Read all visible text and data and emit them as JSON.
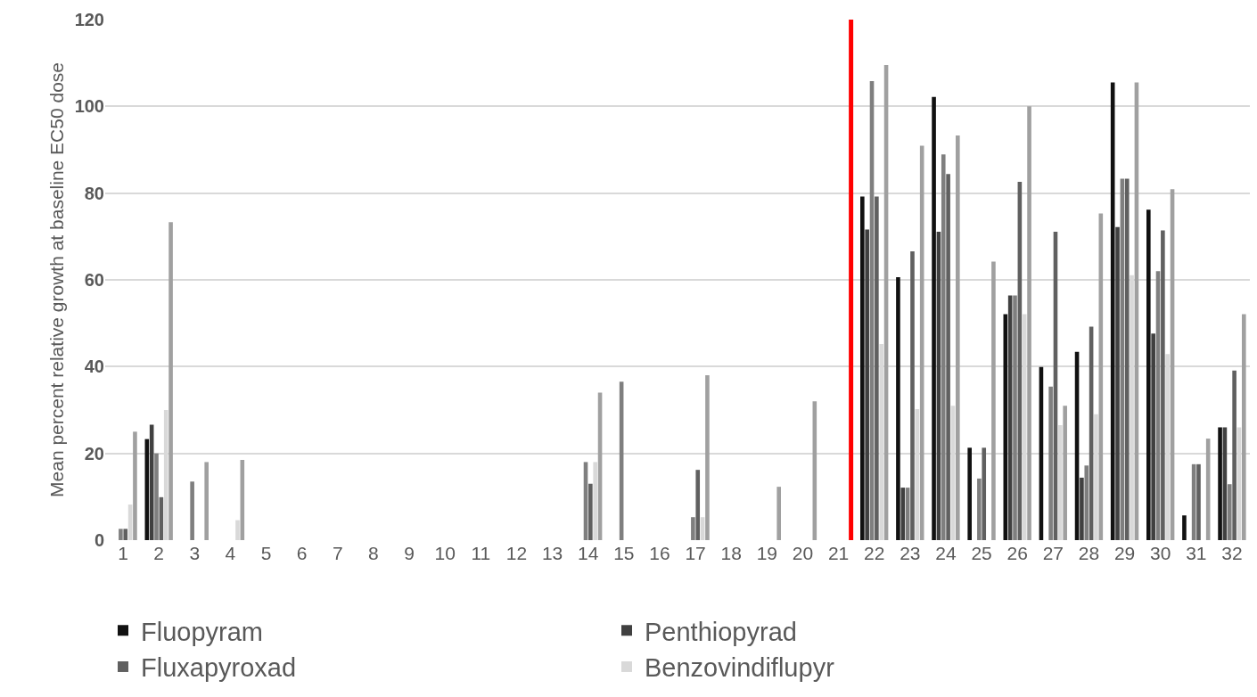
{
  "chart_data": {
    "type": "bar",
    "ylabel": "Mean percent relative growth at baseline EC50 dose",
    "x": [
      1,
      2,
      3,
      4,
      5,
      6,
      7,
      8,
      9,
      10,
      11,
      12,
      13,
      14,
      15,
      16,
      17,
      18,
      19,
      20,
      21,
      22,
      23,
      24,
      25,
      26,
      27,
      28,
      29,
      30,
      31,
      32
    ],
    "xlim": [
      0.5,
      32.5
    ],
    "xticks": [
      1,
      2,
      3,
      4,
      5,
      6,
      7,
      8,
      9,
      10,
      11,
      12,
      13,
      14,
      15,
      16,
      17,
      18,
      19,
      20,
      21,
      22,
      23,
      24,
      25,
      26,
      27,
      28,
      29,
      30,
      31,
      32
    ],
    "ylim": [
      0,
      120
    ],
    "yticks": [
      0,
      20,
      40,
      60,
      80,
      100,
      120
    ],
    "grid": "y",
    "legend": "bottom",
    "ref_lines": [
      {
        "axis": "x",
        "value": 21.35,
        "color": "#ff0000"
      }
    ],
    "series": [
      {
        "name": "Fluopyram",
        "color": "#111111",
        "values": [
          null,
          23.3,
          null,
          null,
          null,
          null,
          null,
          null,
          null,
          null,
          null,
          null,
          null,
          null,
          null,
          null,
          null,
          null,
          null,
          null,
          null,
          79.2,
          60.6,
          102.2,
          21.3,
          52.1,
          39.9,
          43.4,
          105.5,
          76.2,
          5.7,
          26
        ]
      },
      {
        "name": "Penthiopyrad",
        "color": "#404040",
        "values": [
          null,
          26.6,
          null,
          null,
          null,
          null,
          null,
          null,
          null,
          null,
          null,
          null,
          null,
          null,
          null,
          null,
          null,
          null,
          null,
          null,
          null,
          71.6,
          12.1,
          71.1,
          null,
          56.4,
          null,
          14.4,
          72.2,
          47.6,
          null,
          26
        ]
      },
      {
        "color": "#7f7f7f",
        "values": [
          2.6,
          20,
          13.5,
          null,
          null,
          null,
          null,
          null,
          null,
          null,
          null,
          null,
          null,
          18,
          36.5,
          null,
          5.3,
          null,
          null,
          null,
          null,
          105.8,
          12.1,
          88.9,
          14.2,
          56.4,
          35.4,
          17.2,
          83.3,
          62,
          17.5,
          12.9
        ]
      },
      {
        "name": "Fluxapyroxad",
        "color": "#606060",
        "values": [
          2.6,
          9.9,
          null,
          null,
          null,
          null,
          null,
          null,
          null,
          null,
          null,
          null,
          null,
          13,
          null,
          null,
          16.2,
          null,
          null,
          null,
          null,
          79.2,
          66.6,
          84.4,
          21.3,
          82.6,
          71.1,
          49.2,
          83.3,
          71.4,
          17.5,
          39.1
        ]
      },
      {
        "name": "Benzovindiflupyr",
        "color": "#d9d9d9",
        "values": [
          8.2,
          30,
          null,
          4.6,
          null,
          null,
          null,
          null,
          null,
          null,
          null,
          null,
          null,
          18,
          null,
          null,
          5.3,
          null,
          null,
          null,
          null,
          45.2,
          30.2,
          31,
          null,
          52.1,
          26.5,
          29,
          61.1,
          42.9,
          null,
          26
        ]
      },
      {
        "color": "#a0a0a0",
        "values": [
          25,
          73.3,
          18,
          18.5,
          null,
          null,
          null,
          null,
          null,
          null,
          null,
          null,
          null,
          34,
          null,
          null,
          38,
          null,
          12.3,
          32,
          null,
          109.5,
          90.9,
          93.3,
          64.2,
          100,
          31,
          75.3,
          105.5,
          80.9,
          23.4,
          52.1
        ]
      }
    ]
  }
}
